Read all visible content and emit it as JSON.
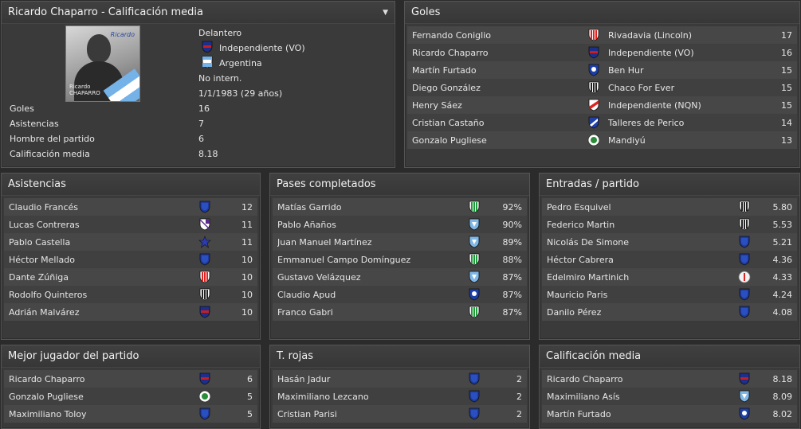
{
  "profile": {
    "title": "Ricardo Chaparro - Calificación media",
    "photo_caption_first": "Ricardo",
    "photo_caption_last": "CHAPARRO",
    "photo_signature": "Ricardo",
    "position": "Delantero",
    "club": "Independiente (VO)",
    "nation": "Argentina",
    "intern": "No intern.",
    "dob": "1/1/1983 (29 años)",
    "stats": [
      {
        "label": "Goles",
        "value": "16"
      },
      {
        "label": "Asistencias",
        "value": "7"
      },
      {
        "label": "Hombre del partido",
        "value": "6"
      },
      {
        "label": "Calificación media",
        "value": "8.18"
      }
    ]
  },
  "goles": {
    "title": "Goles",
    "rows": [
      {
        "name": "Fernando Coniglio",
        "club": "Rivadavia (Lincoln)",
        "crest": "red-white-stripes-crest",
        "value": "17"
      },
      {
        "name": "Ricardo Chaparro",
        "club": "Independiente (VO)",
        "crest": "red-blue-crest",
        "value": "16"
      },
      {
        "name": "Martín Furtado",
        "club": "Ben Hur",
        "crest": "blue-white-crest",
        "value": "15"
      },
      {
        "name": "Diego González",
        "club": "Chaco For Ever",
        "crest": "black-white-stripes-crest",
        "value": "15"
      },
      {
        "name": "Henry Sáez",
        "club": "Independiente (NQN)",
        "crest": "red-diagonal-crest",
        "value": "15"
      },
      {
        "name": "Cristian Castaño",
        "club": "Talleres de Perico",
        "crest": "blue-diagonal-crest",
        "value": "14"
      },
      {
        "name": "Gonzalo Pugliese",
        "club": "Mandiyú",
        "crest": "green-white-round-crest",
        "value": "13"
      }
    ]
  },
  "asistencias": {
    "title": "Asistencias",
    "rows": [
      {
        "name": "Claudio Francés",
        "crest": "blue-shield-crest",
        "value": "12"
      },
      {
        "name": "Lucas Contreras",
        "crest": "purple-white-crest",
        "value": "11"
      },
      {
        "name": "Pablo Castella",
        "crest": "blue-star-crest",
        "value": "11"
      },
      {
        "name": "Héctor Mellado",
        "crest": "blue-shield-crest",
        "value": "10"
      },
      {
        "name": "Dante Zúñiga",
        "crest": "red-white-stripes-crest",
        "value": "10"
      },
      {
        "name": "Rodolfo Quinteros",
        "crest": "black-white-stripes-crest",
        "value": "10"
      },
      {
        "name": "Adrián Malvárez",
        "crest": "red-blue-crest",
        "value": "10"
      }
    ]
  },
  "pases": {
    "title": "Pases completados",
    "rows": [
      {
        "name": "Matías Garrido",
        "crest": "green-white-stripes-crest",
        "value": "92%"
      },
      {
        "name": "Pablo Añaños",
        "crest": "light-blue-crest",
        "value": "90%"
      },
      {
        "name": "Juan Manuel Martínez",
        "crest": "light-blue-crest",
        "value": "89%"
      },
      {
        "name": "Emmanuel Campo Domínguez",
        "crest": "green-white-stripes-crest",
        "value": "88%"
      },
      {
        "name": "Gustavo Velázquez",
        "crest": "light-blue-crest",
        "value": "87%"
      },
      {
        "name": "Claudio Apud",
        "crest": "blue-white-crest",
        "value": "87%"
      },
      {
        "name": "Franco Gabri",
        "crest": "green-white-stripes-crest",
        "value": "87%"
      }
    ]
  },
  "entradas": {
    "title": "Entradas / partido",
    "rows": [
      {
        "name": "Pedro Esquivel",
        "crest": "black-white-stripes-crest",
        "value": "5.80"
      },
      {
        "name": "Federico Martin",
        "crest": "black-white-stripes-crest",
        "value": "5.53"
      },
      {
        "name": "Nicolás De Simone",
        "crest": "blue-shield-crest",
        "value": "5.21"
      },
      {
        "name": "Héctor Cabrera",
        "crest": "blue-shield-crest",
        "value": "4.36"
      },
      {
        "name": "Edelmiro Martinich",
        "crest": "white-red-round-crest",
        "value": "4.33"
      },
      {
        "name": "Mauricio Paris",
        "crest": "blue-shield-crest",
        "value": "4.24"
      },
      {
        "name": "Danilo Pérez",
        "crest": "blue-shield-crest",
        "value": "4.08"
      }
    ]
  },
  "mejor": {
    "title": "Mejor jugador del partido",
    "rows": [
      {
        "name": "Ricardo Chaparro",
        "crest": "red-blue-crest",
        "value": "6"
      },
      {
        "name": "Gonzalo Pugliese",
        "crest": "green-white-round-crest",
        "value": "5"
      },
      {
        "name": "Maximiliano Toloy",
        "crest": "blue-shield-crest",
        "value": "5"
      }
    ]
  },
  "rojas": {
    "title": "T. rojas",
    "rows": [
      {
        "name": "Hasán Jadur",
        "crest": "blue-shield-crest",
        "value": "2"
      },
      {
        "name": "Maximiliano Lezcano",
        "crest": "blue-shield-crest",
        "value": "2"
      },
      {
        "name": "Cristian Parisi",
        "crest": "blue-shield-crest",
        "value": "2"
      }
    ]
  },
  "calificacion": {
    "title": "Calificación media",
    "rows": [
      {
        "name": "Ricardo Chaparro",
        "crest": "red-blue-crest",
        "value": "8.18"
      },
      {
        "name": "Maximiliano Asís",
        "crest": "light-blue-crest",
        "value": "8.09"
      },
      {
        "name": "Martín Furtado",
        "crest": "blue-white-crest",
        "value": "8.02"
      }
    ]
  }
}
